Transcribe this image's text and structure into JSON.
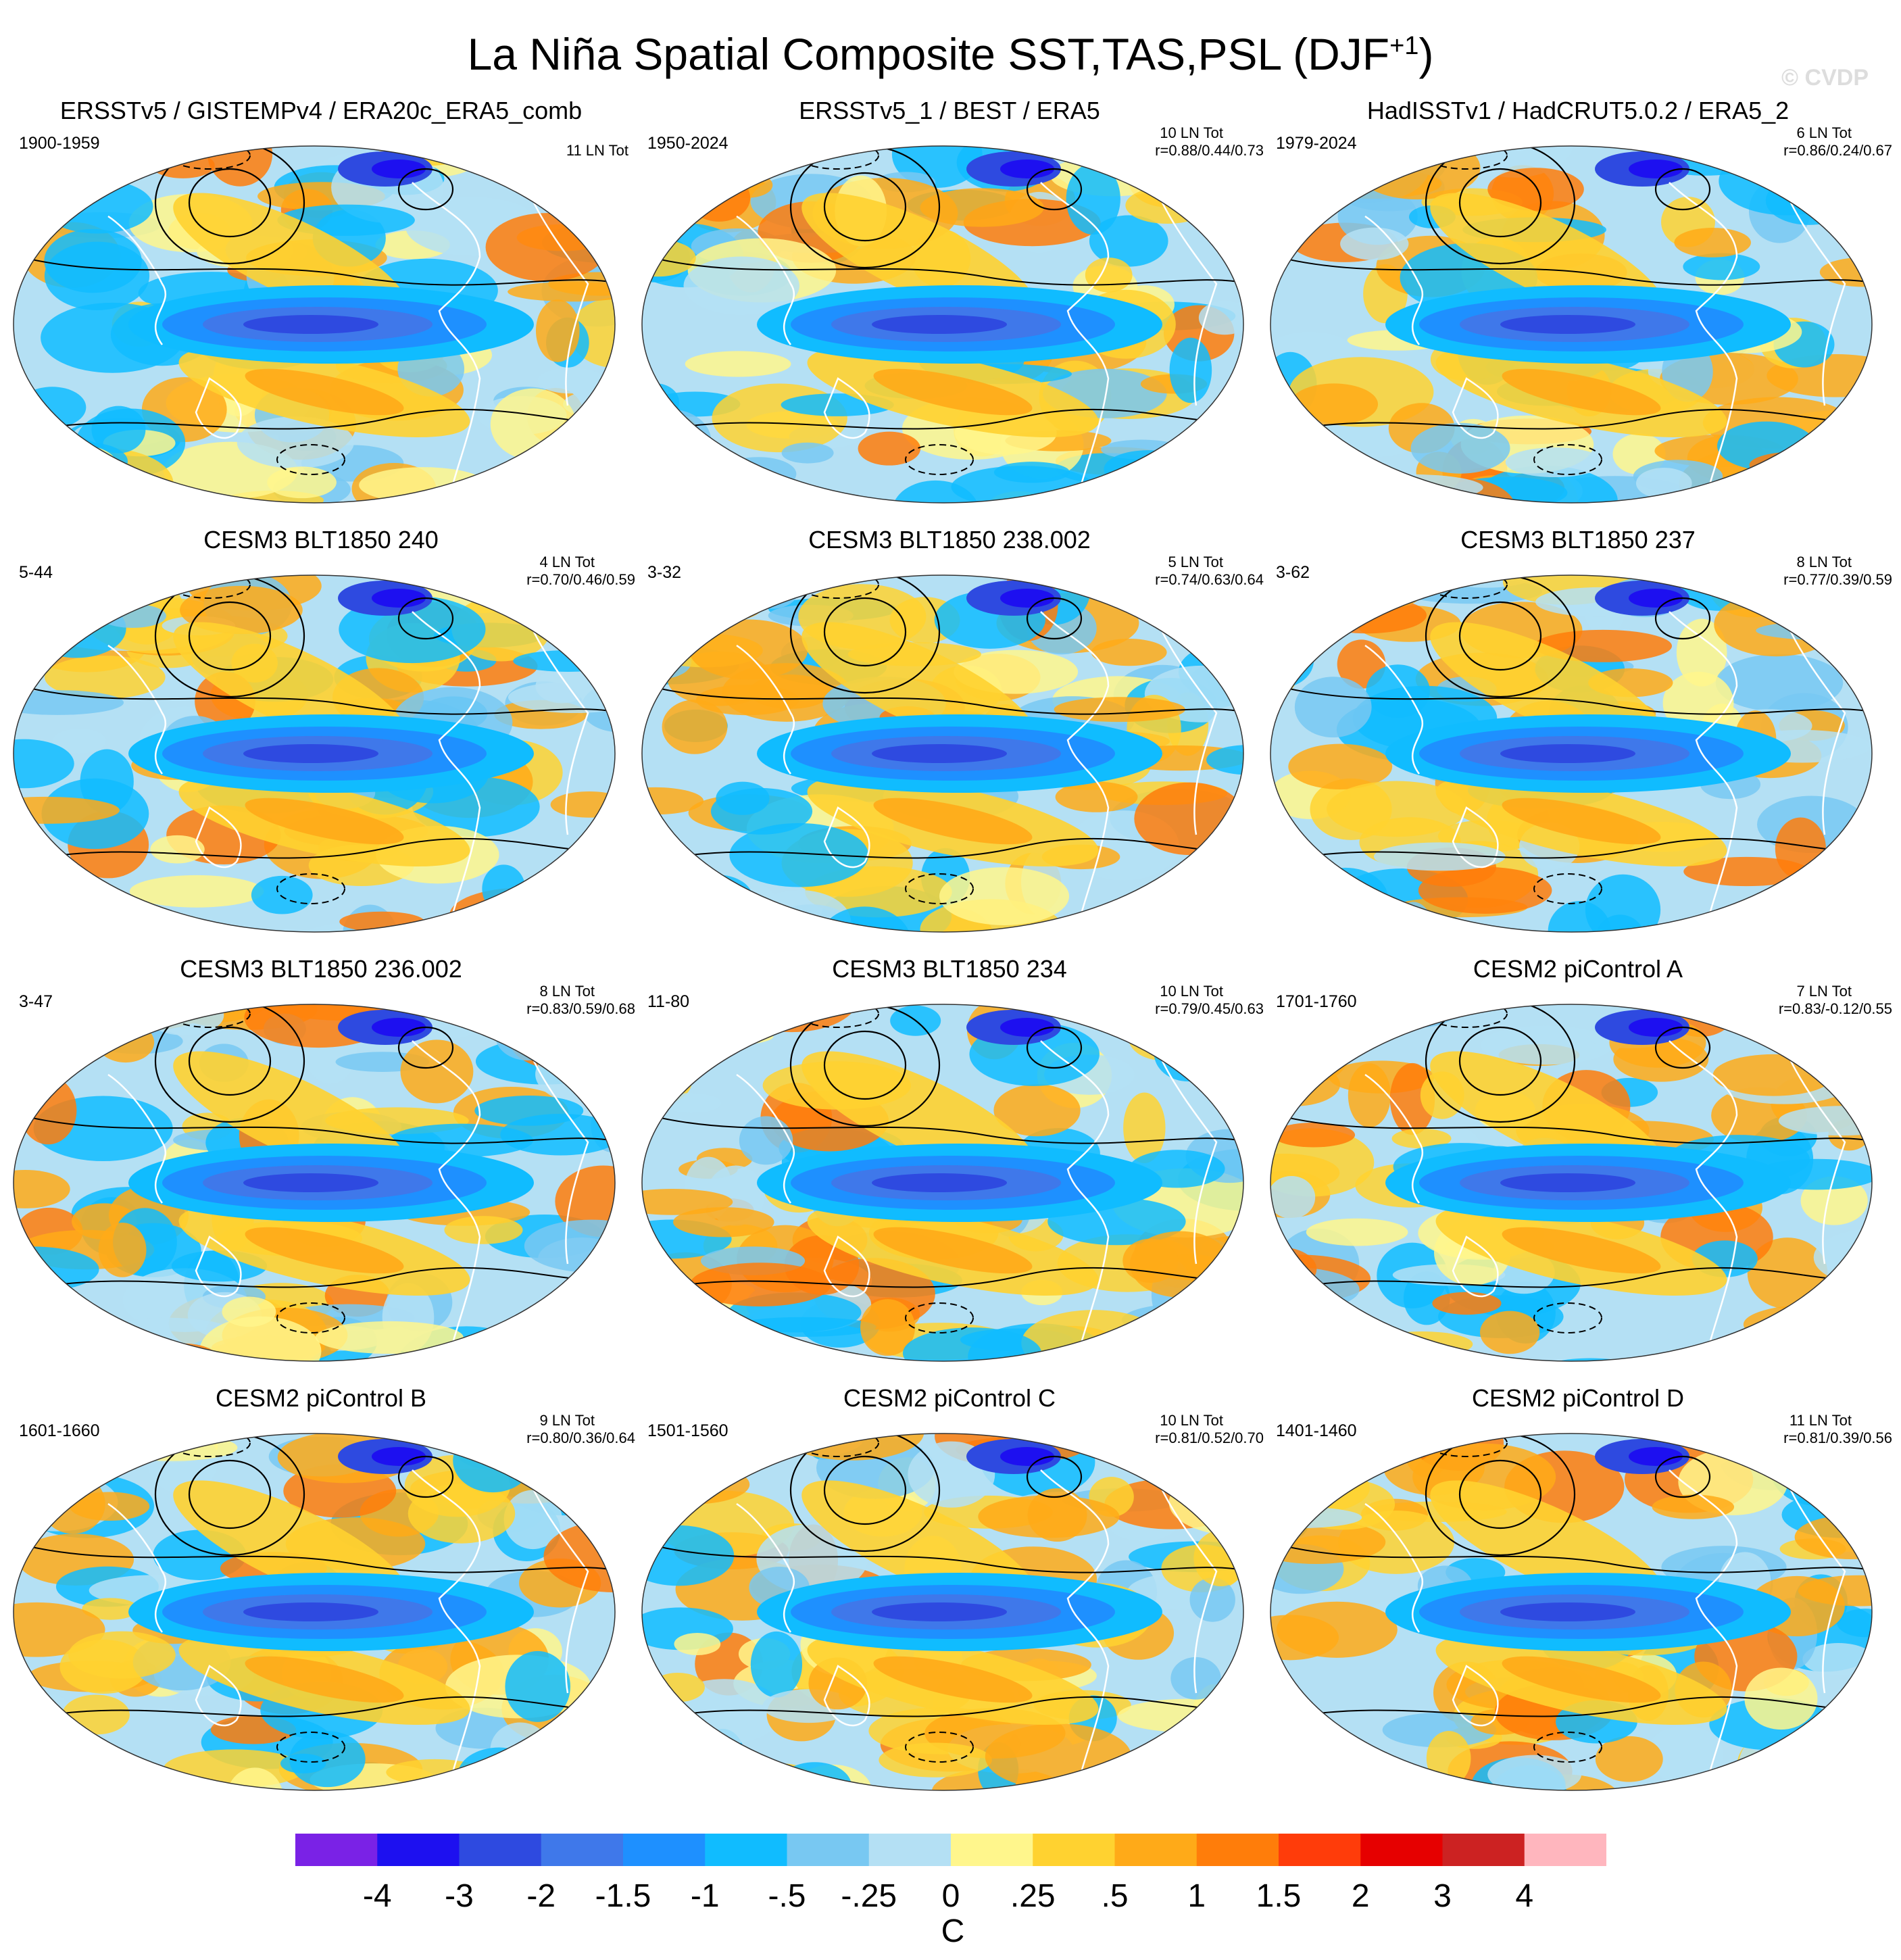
{
  "title": "La Niña Spatial Composite SST,TAS,PSL (DJF",
  "title_superscript": "+1",
  "title_suffix": ")",
  "watermark": "© CVDP",
  "chart_data": {
    "type": "map-panels",
    "variable": "SST,TAS,PSL",
    "season": "DJF+1",
    "colorbar": {
      "unit": "C",
      "levels": [
        "-4",
        "-3",
        "-2",
        "-1.5",
        "-1",
        "-.5",
        "-.25",
        "0",
        ".25",
        ".5",
        "1",
        "1.5",
        "2",
        "3",
        "4"
      ],
      "colors": [
        "#7a22e6",
        "#1d10f0",
        "#2e4ae0",
        "#3f78ea",
        "#1e90ff",
        "#10bcff",
        "#78c8f2",
        "#b4e0f4",
        "#fff68c",
        "#ffd230",
        "#ffaa18",
        "#ff7d0a",
        "#ff3c0a",
        "#e60000",
        "#cc2222",
        "#ffb6be"
      ]
    },
    "panels": [
      {
        "title": "ERSSTv5 / GISTEMPv4 / ERA20c_ERA5_comb",
        "years": "1900-1959",
        "count": "11 LN Tot",
        "r": ""
      },
      {
        "title": "ERSSTv5_1 / BEST / ERA5",
        "years": "1950-2024",
        "count": "10 LN Tot",
        "r": "r=0.88/0.44/0.73"
      },
      {
        "title": "HadISSTv1 / HadCRUT5.0.2 / ERA5_2",
        "years": "1979-2024",
        "count": "6 LN Tot",
        "r": "r=0.86/0.24/0.67"
      },
      {
        "title": "CESM3 BLT1850 240",
        "years": "5-44",
        "count": "4 LN Tot",
        "r": "r=0.70/0.46/0.59"
      },
      {
        "title": "CESM3 BLT1850 238.002",
        "years": "3-32",
        "count": "5 LN Tot",
        "r": "r=0.74/0.63/0.64"
      },
      {
        "title": "CESM3 BLT1850 237",
        "years": "3-62",
        "count": "8 LN Tot",
        "r": "r=0.77/0.39/0.59"
      },
      {
        "title": "CESM3 BLT1850 236.002",
        "years": "3-47",
        "count": "8 LN Tot",
        "r": "r=0.83/0.59/0.68"
      },
      {
        "title": "CESM3 BLT1850 234",
        "years": "11-80",
        "count": "10 LN Tot",
        "r": "r=0.79/0.45/0.63"
      },
      {
        "title": "CESM2 piControl A",
        "years": "1701-1760",
        "count": "7 LN Tot",
        "r": "r=0.83/-0.12/0.55"
      },
      {
        "title": "CESM2 piControl B",
        "years": "1601-1660",
        "count": "9 LN Tot",
        "r": "r=0.80/0.36/0.64"
      },
      {
        "title": "CESM2 piControl C",
        "years": "1501-1560",
        "count": "10 LN Tot",
        "r": "r=0.81/0.52/0.70"
      },
      {
        "title": "CESM2 piControl D",
        "years": "1401-1460",
        "count": "11 LN Tot",
        "r": "r=0.81/0.39/0.56"
      }
    ]
  }
}
